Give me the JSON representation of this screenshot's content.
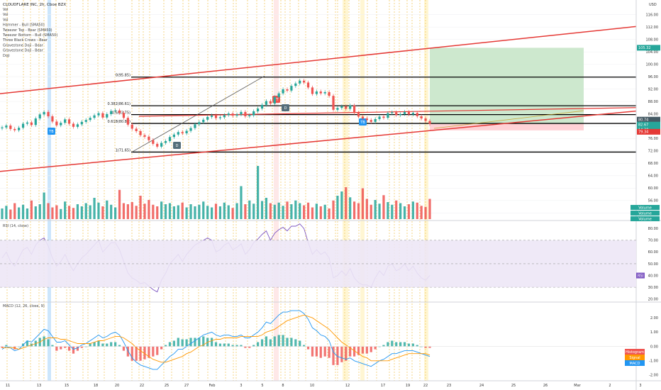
{
  "header": {
    "title": "CLOUDFLARE INC, 2h, Cboe BZX",
    "indicators": [
      "Vol",
      "Vol",
      "Vol",
      "Hammer - Bull (SMA50)",
      "Tweezer Top - Bear (SMA50)",
      "Tweezer Bottom - Bull (SMA50)",
      "Three Black Crows - Bear",
      "Gravestone Doji - Bear",
      "Gravestone Doji - Bear",
      "Doji"
    ],
    "currency": "USD"
  },
  "colors": {
    "up": "#26a69a",
    "down": "#ef5350",
    "channel": "#e53935",
    "fib": "#000000",
    "rsi_line": "#7e57c2",
    "rsi_band": "#ede7f6",
    "macd_line": "#2196f3",
    "signal_line": "#ff9800",
    "target_zone": "#c8e6c9",
    "stop_zone": "#ffcdd2",
    "vline_orange": "#f2c14e",
    "highlight_blue": "#bbdefb",
    "highlight_yellow": "#fff3c4"
  },
  "price_scale": {
    "ticks": [
      "116.00",
      "112.00",
      "108.00",
      "104.00",
      "100.00",
      "96.00",
      "92.00",
      "88.00",
      "84.00",
      "80.00",
      "76.00",
      "72.00",
      "68.00",
      "64.00",
      "60.00",
      "56.00",
      "52.00"
    ],
    "badges": [
      {
        "text": "105.32",
        "color": "#26a69a"
      },
      {
        "text": "80.74",
        "color": "#455a64"
      },
      {
        "text": "82.67",
        "color": "#26a69a"
      },
      {
        "text": "14:38",
        "color": "#26a69a"
      },
      {
        "text": "79.34",
        "color": "#e53935"
      }
    ]
  },
  "fib_levels": [
    {
      "label": "0(95.85)",
      "price": 95.85
    },
    {
      "label": "0.382(86.61)",
      "price": 86.61
    },
    {
      "label": "0.5(83.75)",
      "price": 83.75
    },
    {
      "label": "0.618(80.89)",
      "price": 80.89
    },
    {
      "label": "1(71.65)",
      "price": 71.65
    }
  ],
  "chart_tags": [
    {
      "text": "TB",
      "color": "#2196f3"
    },
    {
      "text": "TT",
      "color": "#ef5350"
    },
    {
      "text": "D",
      "color": "#546e7a"
    },
    {
      "text": "D",
      "color": "#546e7a"
    },
    {
      "text": "TB",
      "color": "#2196f3"
    }
  ],
  "volume_legend": [
    "Volume",
    "Volume",
    "Volume"
  ],
  "rsi": {
    "title": "RSI (14, close)",
    "ticks": [
      "80.00",
      "70.00",
      "60.00",
      "50.00",
      "40.00",
      "30.00",
      "20.00"
    ],
    "tag": "RSI"
  },
  "macd": {
    "title": "MACD (12, 26, close, 9)",
    "ticks": [
      "2.00",
      "1.00",
      "0.00",
      "-1.00",
      "-2.00"
    ],
    "tags": [
      {
        "text": "Histogram",
        "color": "#ef5350"
      },
      {
        "text": "Signal",
        "color": "#ff9800"
      },
      {
        "text": "MACD",
        "color": "#2196f3"
      }
    ]
  },
  "time_axis": [
    "11",
    "13",
    "15",
    "18",
    "20",
    "22",
    "25",
    "27",
    "Feb",
    "3",
    "5",
    "8",
    "10",
    "12",
    "17",
    "19",
    "22",
    "23",
    "24",
    "25",
    "26",
    "Mar",
    "2",
    "3"
  ],
  "chart_data": {
    "type": "line",
    "title": "CLOUDFLARE INC, 2h, Cboe BZX",
    "xlabel": "",
    "ylabel": "USD",
    "ylim": [
      50,
      118
    ],
    "series": [
      {
        "values": [
          79.6,
          80.2,
          79.1,
          78.7,
          79.5,
          80.8,
          81.2,
          80.4,
          82.5,
          83.8,
          84.6,
          83.2,
          81.5,
          80.3,
          81.1,
          82.2,
          80.8,
          79.8,
          80.6,
          81.4,
          82.0,
          82.7,
          83.5,
          84.2,
          82.8,
          83.9,
          84.9,
          85.1,
          84.3,
          82.7,
          80.5,
          79.2,
          78.4,
          77.1,
          76.6,
          75.5,
          74.3,
          73.4,
          74.6,
          75.2,
          76.5,
          77.3,
          78.1,
          77.7,
          78.5,
          79.4,
          80.6,
          81.3,
          82.1,
          83.0,
          83.5,
          82.6,
          82.9,
          83.6,
          84.1,
          83.4,
          83.8,
          84.6,
          83.2,
          83.5,
          84.8,
          85.7,
          86.9,
          88.1,
          87.3,
          89.4,
          90.6,
          91.9,
          91.5,
          93.0,
          93.8,
          94.7,
          94.1,
          92.5,
          90.4,
          91.2,
          90.6,
          91.0,
          89.8,
          85.3,
          85.9,
          86.4,
          85.6,
          86.7,
          84.3,
          83.1,
          82.5,
          82.0,
          81.4,
          82.3,
          83.1,
          82.7,
          84.2,
          84.5,
          83.6,
          83.9,
          84.6,
          83.8,
          84.3,
          83.2,
          82.5,
          81.7,
          80.74
        ]
      }
    ],
    "volume": [
      0.2,
      0.25,
      0.18,
      0.3,
      0.22,
      0.27,
      0.2,
      0.35,
      0.24,
      0.28,
      0.5,
      0.3,
      0.22,
      0.26,
      0.19,
      0.33,
      0.25,
      0.21,
      0.28,
      0.24,
      0.3,
      0.26,
      0.4,
      0.31,
      0.24,
      0.35,
      0.27,
      0.22,
      0.55,
      0.3,
      0.28,
      0.32,
      0.25,
      0.44,
      0.29,
      0.36,
      0.27,
      0.24,
      0.33,
      0.28,
      0.3,
      0.24,
      0.26,
      0.31,
      0.22,
      0.28,
      0.24,
      0.27,
      0.33,
      0.25,
      0.22,
      0.29,
      0.24,
      0.31,
      0.26,
      0.21,
      0.3,
      0.62,
      0.28,
      0.35,
      0.29,
      1.0,
      0.34,
      0.4,
      0.3,
      0.27,
      0.31,
      0.25,
      0.33,
      0.28,
      0.35,
      0.3,
      0.26,
      0.31,
      0.22,
      0.29,
      0.24,
      0.27,
      0.2,
      0.35,
      0.44,
      0.52,
      0.6,
      0.41,
      0.33,
      0.3,
      0.58,
      0.38,
      0.27,
      0.36,
      0.29,
      0.45,
      0.32,
      0.27,
      0.35,
      0.3,
      0.24,
      0.28,
      0.33,
      0.31,
      0.25,
      0.23,
      0.38
    ],
    "rsi": [
      55,
      60,
      52,
      48,
      55,
      62,
      64,
      58,
      66,
      70,
      72,
      65,
      55,
      48,
      52,
      58,
      50,
      44,
      50,
      55,
      58,
      62,
      66,
      70,
      60,
      64,
      68,
      68,
      62,
      52,
      42,
      38,
      36,
      33,
      34,
      31,
      28,
      26,
      36,
      42,
      50,
      54,
      58,
      52,
      58,
      62,
      66,
      68,
      70,
      72,
      70,
      60,
      62,
      66,
      68,
      62,
      64,
      67,
      58,
      62,
      68,
      71,
      75,
      78,
      70,
      76,
      79,
      81,
      78,
      82,
      82,
      84,
      80,
      68,
      58,
      62,
      58,
      60,
      55,
      38,
      40,
      44,
      40,
      46,
      38,
      34,
      32,
      32,
      30,
      38,
      44,
      40,
      48,
      50,
      44,
      46,
      50,
      44,
      48,
      42,
      38,
      36,
      40
    ],
    "macd": [
      -0.2,
      0,
      -0.1,
      -0.3,
      -0.2,
      0.1,
      0.4,
      0.3,
      0.6,
      0.9,
      1.2,
      1.1,
      0.7,
      0.3,
      0.3,
      0.4,
      0.1,
      -0.2,
      -0.1,
      0.1,
      0.2,
      0.4,
      0.6,
      0.8,
      0.6,
      0.7,
      0.9,
      1.0,
      0.8,
      0.3,
      -0.3,
      -0.8,
      -1.1,
      -1.3,
      -1.4,
      -1.5,
      -1.6,
      -1.6,
      -1.3,
      -1.0,
      -0.7,
      -0.5,
      -0.2,
      -0.2,
      0.0,
      0.2,
      0.4,
      0.6,
      0.8,
      0.9,
      1.0,
      0.8,
      0.7,
      0.8,
      0.8,
      0.7,
      0.7,
      0.8,
      0.6,
      0.6,
      0.8,
      1.0,
      1.3,
      1.7,
      1.6,
      1.9,
      2.2,
      2.4,
      2.4,
      2.5,
      2.5,
      2.5,
      2.3,
      1.9,
      1.3,
      1.1,
      0.8,
      0.7,
      0.4,
      -0.4,
      -0.7,
      -0.8,
      -0.9,
      -0.8,
      -1.0,
      -1.1,
      -1.2,
      -1.3,
      -1.4,
      -1.2,
      -1.0,
      -0.9,
      -0.7,
      -0.5,
      -0.5,
      -0.4,
      -0.3,
      -0.3,
      -0.3,
      -0.4,
      -0.5,
      -0.6,
      -0.7
    ],
    "signal": [
      -0.1,
      -0.1,
      -0.1,
      -0.1,
      -0.2,
      -0.1,
      0.0,
      0.1,
      0.2,
      0.3,
      0.5,
      0.6,
      0.6,
      0.6,
      0.5,
      0.5,
      0.4,
      0.3,
      0.2,
      0.2,
      0.2,
      0.2,
      0.3,
      0.4,
      0.4,
      0.5,
      0.6,
      0.7,
      0.7,
      0.6,
      0.4,
      0.2,
      -0.1,
      -0.3,
      -0.5,
      -0.7,
      -0.9,
      -1.0,
      -1.1,
      -1.1,
      -1.0,
      -0.9,
      -0.8,
      -0.7,
      -0.5,
      -0.4,
      -0.2,
      0.0,
      0.1,
      0.3,
      0.4,
      0.5,
      0.5,
      0.6,
      0.6,
      0.6,
      0.6,
      0.7,
      0.7,
      0.7,
      0.7,
      0.7,
      0.8,
      1.0,
      1.1,
      1.2,
      1.4,
      1.6,
      1.8,
      1.9,
      2.0,
      2.1,
      2.2,
      2.1,
      2.0,
      1.8,
      1.6,
      1.4,
      1.2,
      0.9,
      0.6,
      0.3,
      0.1,
      -0.1,
      -0.3,
      -0.5,
      -0.7,
      -0.8,
      -1.0,
      -1.0,
      -1.0,
      -1.0,
      -1.0,
      -0.9,
      -0.8,
      -0.7,
      -0.6,
      -0.5,
      -0.5,
      -0.5,
      -0.5,
      -0.5,
      -0.6
    ]
  }
}
